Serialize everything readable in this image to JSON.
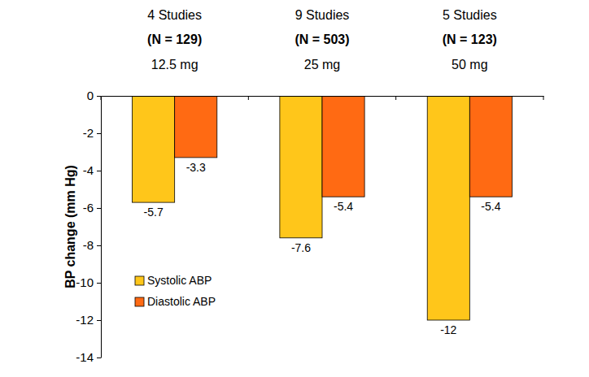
{
  "chart_data": {
    "type": "bar",
    "y_label": "BP change (mm Hg)",
    "categories": [
      "12.5 mg",
      "25 mg",
      "50 mg"
    ],
    "annotations": [
      [
        "4 Studies",
        "(N = 129)"
      ],
      [
        "9 Studies",
        "(N = 503)"
      ],
      [
        "5 Studies",
        "(N = 123)"
      ]
    ],
    "series": [
      {
        "name": "Systolic ABP",
        "color": "#ffc61a",
        "values": [
          -5.7,
          -7.6,
          -12
        ]
      },
      {
        "name": "Diastolic ABP",
        "color": "#ff6a13",
        "values": [
          -3.3,
          -5.4,
          -5.4
        ]
      }
    ],
    "ylim": [
      -14,
      0
    ],
    "yticks": [
      0,
      -2,
      -4,
      -6,
      -8,
      -10,
      -12,
      -14
    ],
    "data_labels": true,
    "legend": "lower left",
    "grid": false
  }
}
